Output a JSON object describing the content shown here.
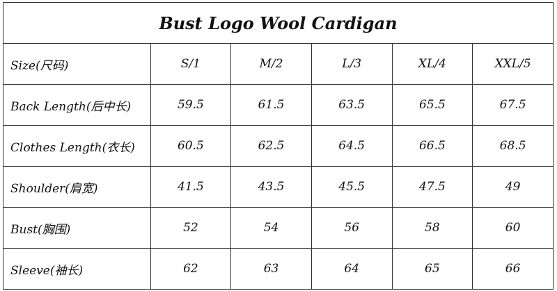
{
  "title": "Bust Logo Wool Cardigan",
  "rows": [
    {
      "label": "Size(尺码)",
      "values": [
        "S/1",
        "M/2",
        "L/3",
        "XL/4",
        "XXL/5"
      ]
    },
    {
      "label": "Back Length(后中长)",
      "values": [
        "59.5",
        "61.5",
        "63.5",
        "65.5",
        "67.5"
      ]
    },
    {
      "label": "Clothes Length(衣长)",
      "values": [
        "60.5",
        "62.5",
        "64.5",
        "66.5",
        "68.5"
      ]
    },
    {
      "label": "Shoulder(肩宽)",
      "values": [
        "41.5",
        "43.5",
        "45.5",
        "47.5",
        "49"
      ]
    },
    {
      "label": "Bust(胸围)",
      "values": [
        "52",
        "54",
        "56",
        "58",
        "60"
      ]
    },
    {
      "label": "Sleeve(袖长)",
      "values": [
        "62",
        "63",
        "64",
        "65",
        "66"
      ]
    }
  ]
}
